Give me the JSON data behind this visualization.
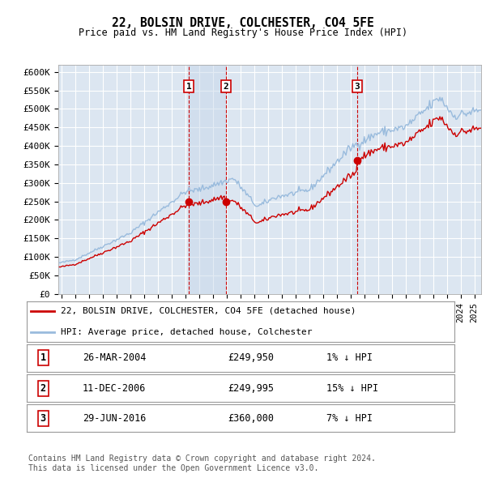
{
  "title": "22, BOLSIN DRIVE, COLCHESTER, CO4 5FE",
  "subtitle": "Price paid vs. HM Land Registry's House Price Index (HPI)",
  "ylim": [
    0,
    620000
  ],
  "yticks": [
    0,
    50000,
    100000,
    150000,
    200000,
    250000,
    300000,
    350000,
    400000,
    450000,
    500000,
    550000,
    600000
  ],
  "ytick_labels": [
    "£0",
    "£50K",
    "£100K",
    "£150K",
    "£200K",
    "£250K",
    "£300K",
    "£350K",
    "£400K",
    "£450K",
    "£500K",
    "£550K",
    "£600K"
  ],
  "xlim_start": 1994.75,
  "xlim_end": 2025.5,
  "background_color": "#ffffff",
  "plot_bg_color": "#dce6f1",
  "grid_color": "#ffffff",
  "sale_color": "#cc0000",
  "hpi_color": "#99bbdd",
  "sale_marker_color": "#cc0000",
  "vline_color": "#cc0000",
  "transactions": [
    {
      "label": "1",
      "date_x": 2004.23,
      "price": 249950
    },
    {
      "label": "2",
      "date_x": 2006.94,
      "price": 249995
    },
    {
      "label": "3",
      "date_x": 2016.49,
      "price": 360000
    }
  ],
  "legend_entries": [
    {
      "label": "22, BOLSIN DRIVE, COLCHESTER, CO4 5FE (detached house)",
      "color": "#cc0000"
    },
    {
      "label": "HPI: Average price, detached house, Colchester",
      "color": "#99bbdd"
    }
  ],
  "table_rows": [
    {
      "num": "1",
      "date": "26-MAR-2004",
      "price": "£249,950",
      "pct": "1% ↓ HPI"
    },
    {
      "num": "2",
      "date": "11-DEC-2006",
      "price": "£249,995",
      "pct": "15% ↓ HPI"
    },
    {
      "num": "3",
      "date": "29-JUN-2016",
      "price": "£360,000",
      "pct": "7% ↓ HPI"
    }
  ],
  "footnote": "Contains HM Land Registry data © Crown copyright and database right 2024.\nThis data is licensed under the Open Government Licence v3.0."
}
